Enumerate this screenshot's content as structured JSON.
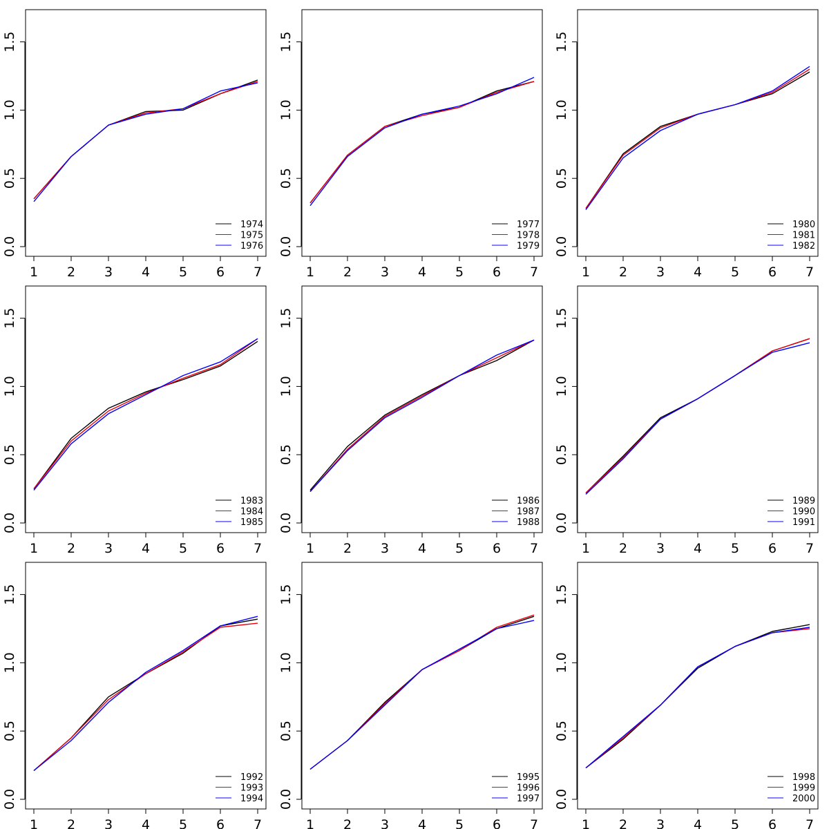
{
  "colors": {
    "black": "#000000",
    "red": "#e8000b",
    "blue": "#0000ff"
  },
  "chart_data": [
    {
      "type": "line",
      "x": [
        1,
        2,
        3,
        4,
        5,
        6,
        7
      ],
      "xlim": [
        1,
        7
      ],
      "ylim": [
        0,
        1.7
      ],
      "yticks": [
        "0.0",
        "0.5",
        "1.0",
        "1.5"
      ],
      "xticks": [
        "1",
        "2",
        "3",
        "4",
        "5",
        "6",
        "7"
      ],
      "legend": "bottom-right",
      "series": [
        {
          "name": "1974",
          "color": "#000000",
          "values": [
            0.35,
            0.66,
            0.89,
            0.99,
            1.0,
            1.12,
            1.22
          ]
        },
        {
          "name": "1975",
          "color": "#e8000b",
          "values": [
            0.35,
            0.66,
            0.89,
            0.98,
            1.01,
            1.12,
            1.21
          ]
        },
        {
          "name": "1976",
          "color": "#0000ff",
          "values": [
            0.33,
            0.66,
            0.89,
            0.97,
            1.01,
            1.14,
            1.2
          ]
        }
      ]
    },
    {
      "type": "line",
      "x": [
        1,
        2,
        3,
        4,
        5,
        6,
        7
      ],
      "xlim": [
        1,
        7
      ],
      "ylim": [
        0,
        1.7
      ],
      "yticks": [
        "0.0",
        "0.5",
        "1.0",
        "1.5"
      ],
      "xticks": [
        "1",
        "2",
        "3",
        "4",
        "5",
        "6",
        "7"
      ],
      "legend": "bottom-right",
      "series": [
        {
          "name": "1977",
          "color": "#000000",
          "values": [
            0.32,
            0.67,
            0.88,
            0.97,
            1.02,
            1.14,
            1.21
          ]
        },
        {
          "name": "1978",
          "color": "#e8000b",
          "values": [
            0.32,
            0.67,
            0.88,
            0.96,
            1.02,
            1.13,
            1.21
          ]
        },
        {
          "name": "1979",
          "color": "#0000ff",
          "values": [
            0.3,
            0.66,
            0.87,
            0.97,
            1.03,
            1.12,
            1.24
          ]
        }
      ]
    },
    {
      "type": "line",
      "x": [
        1,
        2,
        3,
        4,
        5,
        6,
        7
      ],
      "xlim": [
        1,
        7
      ],
      "ylim": [
        0,
        1.7
      ],
      "yticks": [
        "0.0",
        "0.5",
        "1.0",
        "1.5"
      ],
      "xticks": [
        "1",
        "2",
        "3",
        "4",
        "5",
        "6",
        "7"
      ],
      "legend": "bottom-right",
      "series": [
        {
          "name": "1980",
          "color": "#000000",
          "values": [
            0.28,
            0.68,
            0.88,
            0.97,
            1.04,
            1.12,
            1.28
          ]
        },
        {
          "name": "1981",
          "color": "#e8000b",
          "values": [
            0.28,
            0.67,
            0.87,
            0.97,
            1.04,
            1.13,
            1.3
          ]
        },
        {
          "name": "1982",
          "color": "#0000ff",
          "values": [
            0.27,
            0.65,
            0.85,
            0.97,
            1.04,
            1.14,
            1.32
          ]
        }
      ]
    },
    {
      "type": "line",
      "x": [
        1,
        2,
        3,
        4,
        5,
        6,
        7
      ],
      "xlim": [
        1,
        7
      ],
      "ylim": [
        0,
        1.7
      ],
      "yticks": [
        "0.0",
        "0.5",
        "1.0",
        "1.5"
      ],
      "xticks": [
        "1",
        "2",
        "3",
        "4",
        "5",
        "6",
        "7"
      ],
      "legend": "bottom-right",
      "series": [
        {
          "name": "1983",
          "color": "#000000",
          "values": [
            0.25,
            0.62,
            0.84,
            0.96,
            1.05,
            1.15,
            1.33
          ]
        },
        {
          "name": "1984",
          "color": "#e8000b",
          "values": [
            0.25,
            0.6,
            0.82,
            0.95,
            1.06,
            1.16,
            1.35
          ]
        },
        {
          "name": "1985",
          "color": "#0000ff",
          "values": [
            0.24,
            0.58,
            0.8,
            0.94,
            1.08,
            1.18,
            1.35
          ]
        }
      ]
    },
    {
      "type": "line",
      "x": [
        1,
        2,
        3,
        4,
        5,
        6,
        7
      ],
      "xlim": [
        1,
        7
      ],
      "ylim": [
        0,
        1.7
      ],
      "yticks": [
        "0.0",
        "0.5",
        "1.0",
        "1.5"
      ],
      "xticks": [
        "1",
        "2",
        "3",
        "4",
        "5",
        "6",
        "7"
      ],
      "legend": "bottom-right",
      "series": [
        {
          "name": "1986",
          "color": "#000000",
          "values": [
            0.24,
            0.56,
            0.79,
            0.94,
            1.08,
            1.19,
            1.34
          ]
        },
        {
          "name": "1987",
          "color": "#e8000b",
          "values": [
            0.23,
            0.54,
            0.78,
            0.93,
            1.08,
            1.21,
            1.34
          ]
        },
        {
          "name": "1988",
          "color": "#0000ff",
          "values": [
            0.23,
            0.53,
            0.77,
            0.92,
            1.08,
            1.23,
            1.34
          ]
        }
      ]
    },
    {
      "type": "line",
      "x": [
        1,
        2,
        3,
        4,
        5,
        6,
        7
      ],
      "xlim": [
        1,
        7
      ],
      "ylim": [
        0,
        1.7
      ],
      "yticks": [
        "0.0",
        "0.5",
        "1.0",
        "1.5"
      ],
      "xticks": [
        "1",
        "2",
        "3",
        "4",
        "5",
        "6",
        "7"
      ],
      "legend": "bottom-right",
      "series": [
        {
          "name": "1989",
          "color": "#000000",
          "values": [
            0.22,
            0.49,
            0.77,
            0.91,
            1.08,
            1.26,
            1.35
          ]
        },
        {
          "name": "1990",
          "color": "#e8000b",
          "values": [
            0.22,
            0.48,
            0.76,
            0.91,
            1.08,
            1.26,
            1.35
          ]
        },
        {
          "name": "1991",
          "color": "#0000ff",
          "values": [
            0.21,
            0.47,
            0.76,
            0.91,
            1.08,
            1.25,
            1.32
          ]
        }
      ]
    },
    {
      "type": "line",
      "x": [
        1,
        2,
        3,
        4,
        5,
        6,
        7
      ],
      "xlim": [
        1,
        7
      ],
      "ylim": [
        0,
        1.7
      ],
      "yticks": [
        "0.0",
        "0.5",
        "1.0",
        "1.5"
      ],
      "xticks": [
        "1",
        "2",
        "3",
        "4",
        "5",
        "6",
        "7"
      ],
      "legend": "bottom-right",
      "series": [
        {
          "name": "1992",
          "color": "#000000",
          "values": [
            0.21,
            0.45,
            0.75,
            0.92,
            1.07,
            1.27,
            1.32
          ]
        },
        {
          "name": "1993",
          "color": "#e8000b",
          "values": [
            0.21,
            0.45,
            0.73,
            0.92,
            1.08,
            1.26,
            1.29
          ]
        },
        {
          "name": "1994",
          "color": "#0000ff",
          "values": [
            0.21,
            0.43,
            0.71,
            0.93,
            1.09,
            1.27,
            1.34
          ]
        }
      ]
    },
    {
      "type": "line",
      "x": [
        1,
        2,
        3,
        4,
        5,
        6,
        7
      ],
      "xlim": [
        1,
        7
      ],
      "ylim": [
        0,
        1.7
      ],
      "yticks": [
        "0.0",
        "0.5",
        "1.0",
        "1.5"
      ],
      "xticks": [
        "1",
        "2",
        "3",
        "4",
        "5",
        "6",
        "7"
      ],
      "legend": "bottom-right",
      "series": [
        {
          "name": "1995",
          "color": "#000000",
          "values": [
            0.22,
            0.43,
            0.71,
            0.95,
            1.09,
            1.25,
            1.34
          ]
        },
        {
          "name": "1996",
          "color": "#e8000b",
          "values": [
            0.22,
            0.43,
            0.7,
            0.95,
            1.09,
            1.26,
            1.35
          ]
        },
        {
          "name": "1997",
          "color": "#0000ff",
          "values": [
            0.22,
            0.43,
            0.69,
            0.95,
            1.1,
            1.25,
            1.31
          ]
        }
      ]
    },
    {
      "type": "line",
      "x": [
        1,
        2,
        3,
        4,
        5,
        6,
        7
      ],
      "xlim": [
        1,
        7
      ],
      "ylim": [
        0,
        1.7
      ],
      "yticks": [
        "0.0",
        "0.5",
        "1.0",
        "1.5"
      ],
      "xticks": [
        "1",
        "2",
        "3",
        "4",
        "5",
        "6",
        "7"
      ],
      "legend": "bottom-right",
      "series": [
        {
          "name": "1998",
          "color": "#000000",
          "values": [
            0.23,
            0.44,
            0.69,
            0.96,
            1.12,
            1.23,
            1.28
          ]
        },
        {
          "name": "1999",
          "color": "#e8000b",
          "values": [
            0.23,
            0.45,
            0.69,
            0.97,
            1.12,
            1.22,
            1.25
          ]
        },
        {
          "name": "2000",
          "color": "#0000ff",
          "values": [
            0.23,
            0.46,
            0.69,
            0.97,
            1.12,
            1.22,
            1.26
          ]
        }
      ]
    }
  ]
}
